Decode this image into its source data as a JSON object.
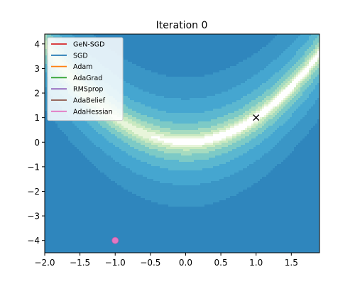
{
  "chart_data": {
    "type": "contour",
    "title": "Iteration 0",
    "xlabel": "",
    "ylabel": "",
    "xlim": [
      -2.0,
      1.9
    ],
    "ylim": [
      -4.5,
      4.4
    ],
    "x_ticks": [
      -2.0,
      -1.5,
      -1.0,
      -0.5,
      0.0,
      0.5,
      1.0,
      1.5
    ],
    "y_ticks": [
      -4,
      -3,
      -2,
      -1,
      0,
      1,
      2,
      3,
      4
    ],
    "x_tick_labels": [
      "−2.0",
      "−1.5",
      "−1.0",
      "−0.5",
      "0.0",
      "0.5",
      "1.0",
      "1.5"
    ],
    "y_tick_labels": [
      "−4",
      "−3",
      "−2",
      "−1",
      "0",
      "1",
      "2",
      "3",
      "4"
    ],
    "grid": false,
    "legend_position": "top-left",
    "series": [
      {
        "name": "GeN-SGD",
        "color": "#d62728",
        "x": [],
        "y": []
      },
      {
        "name": "SGD",
        "color": "#1f77b4",
        "x": [],
        "y": []
      },
      {
        "name": "Adam",
        "color": "#ff7f0e",
        "x": [],
        "y": []
      },
      {
        "name": "AdaGrad",
        "color": "#2ca02c",
        "x": [],
        "y": []
      },
      {
        "name": "RMSprop",
        "color": "#9467bd",
        "x": [],
        "y": []
      },
      {
        "name": "AdaBelief",
        "color": "#8c564b",
        "x": [],
        "y": []
      },
      {
        "name": "AdaHessian",
        "color": "#e377c2",
        "x": [],
        "y": []
      }
    ],
    "start_point": {
      "x": -1.0,
      "y": -4.0,
      "color": "#e377c2"
    },
    "optimum_marker": {
      "x": 1.0,
      "y": 1.0,
      "symbol": "x",
      "color": "#000000"
    },
    "surface": "valley along y = x^2 with minimum at (1, 1)",
    "colormap": [
      "#ffffff",
      "#e8f5da",
      "#c9e9c0",
      "#a6dbc0",
      "#7dcac6",
      "#5bb7d0",
      "#45a6d0",
      "#3a96c6",
      "#2f86bd"
    ]
  }
}
